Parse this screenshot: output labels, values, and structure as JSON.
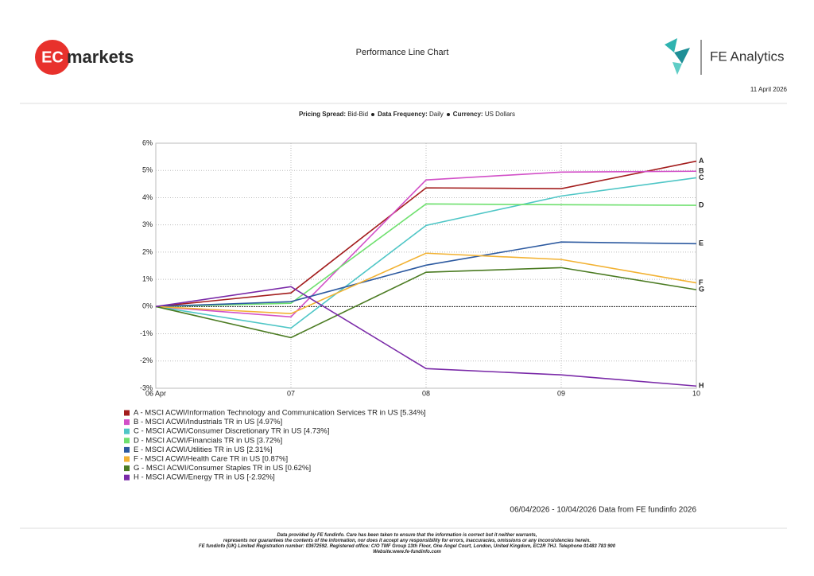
{
  "header": {
    "logo_left": {
      "badge": "EC",
      "word": "markets"
    },
    "title": "Performance Line Chart",
    "logo_right": "FE Analytics",
    "date": "11 April 2026"
  },
  "settings": [
    {
      "label": "Pricing Spread:",
      "value": "Bid-Bid"
    },
    {
      "label": "Data Frequency:",
      "value": "Daily"
    },
    {
      "label": "Currency:",
      "value": "US Dollars"
    }
  ],
  "chart_data": {
    "type": "line",
    "categories": [
      "06 Apr",
      "07",
      "08",
      "09",
      "10"
    ],
    "ylim": [
      -3,
      6
    ],
    "yticks": [
      {
        "value": -3,
        "label": "-3%"
      },
      {
        "value": -2,
        "label": "-2%"
      },
      {
        "value": -1,
        "label": "-1%"
      },
      {
        "value": 0,
        "label": "0%"
      },
      {
        "value": 1,
        "label": "1%"
      },
      {
        "value": 2,
        "label": "2%"
      },
      {
        "value": 3,
        "label": "3%"
      },
      {
        "value": 4,
        "label": "4%"
      },
      {
        "value": 5,
        "label": "5%"
      },
      {
        "value": 6,
        "label": "6%"
      }
    ],
    "grid": true,
    "series": [
      {
        "name": "A - MSCI ACWI/Information Technology and Communication Services TR in US [5.34%]",
        "label": "A",
        "color": "#a31d1d",
        "values": [
          0,
          0.5,
          4.36,
          4.33,
          5.34
        ]
      },
      {
        "name": "B - MSCI ACWI/Industrials TR in US [4.97%]",
        "label": "B",
        "color": "#d250c8",
        "values": [
          0,
          -0.38,
          4.65,
          4.94,
          4.97
        ]
      },
      {
        "name": "C - MSCI ACWI/Consumer Discretionary TR in US [4.73%]",
        "label": "C",
        "color": "#4fc6c6",
        "values": [
          0,
          -0.79,
          2.98,
          4.06,
          4.73
        ]
      },
      {
        "name": "D - MSCI ACWI/Financials TR in US [3.72%]",
        "label": "D",
        "color": "#6fe06f",
        "values": [
          0,
          0.12,
          3.77,
          3.74,
          3.72
        ]
      },
      {
        "name": "E - MSCI ACWI/Utilities TR in US [2.31%]",
        "label": "E",
        "color": "#2d5aa0",
        "values": [
          0,
          0.18,
          1.52,
          2.37,
          2.31
        ]
      },
      {
        "name": "F - MSCI ACWI/Health Care TR in US [0.87%]",
        "label": "F",
        "color": "#f2b233",
        "values": [
          0,
          -0.26,
          1.96,
          1.73,
          0.87
        ]
      },
      {
        "name": "G - MSCI ACWI/Consumer Staples TR in US [0.62%]",
        "label": "G",
        "color": "#4b7b22",
        "values": [
          0,
          -1.14,
          1.26,
          1.43,
          0.62
        ]
      },
      {
        "name": "H - MSCI ACWI/Energy TR in US [-2.92%]",
        "label": "H",
        "color": "#7a2aa8",
        "values": [
          0,
          0.73,
          -2.28,
          -2.51,
          -2.92
        ]
      }
    ]
  },
  "footer": {
    "range": "06/04/2026 - 10/04/2026 Data from FE fundinfo 2026",
    "disclaimer": [
      "Data provided by FE fundinfo. Care has been taken to ensure that the information is correct but it neither warrants,",
      "represents nor guarantees the contents of the information, nor does it accept any responsibility for errors, inaccuracies, omissions or any inconsistencies herein.",
      "FE fundinfo (UK) Limited Registration number: 03672592. Registered office: C/O TMF Group 13th Floor, One Angel Court, London, United Kingdom, EC2R 7HJ. Telephone 01483 783 900",
      "Website:www.fe-fundinfo.com"
    ]
  }
}
